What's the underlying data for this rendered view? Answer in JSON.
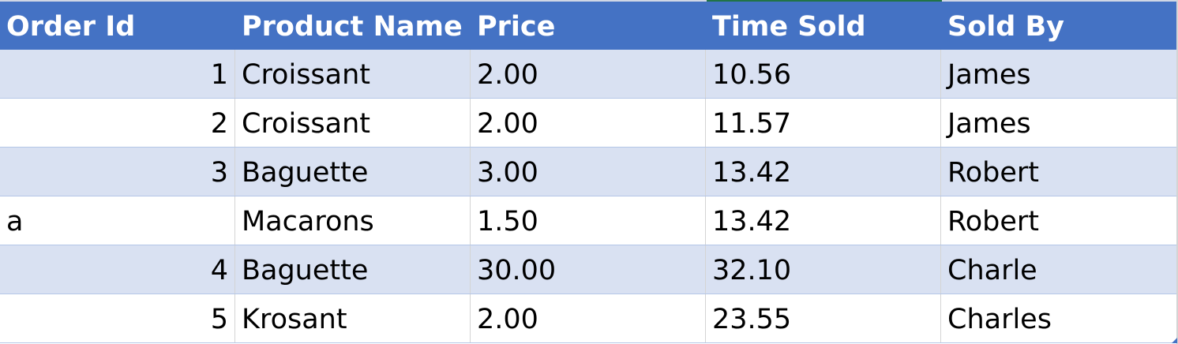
{
  "table": {
    "headers": [
      "Order Id",
      "Product Name",
      "Price",
      "Time Sold",
      "Sold By"
    ],
    "rows": [
      [
        "1",
        "Croissant",
        "2.00",
        "10.56",
        "James"
      ],
      [
        "2",
        "Croissant",
        "2.00",
        "11.57",
        "James"
      ],
      [
        "3",
        "Baguette",
        "3.00",
        "13.42",
        "Robert"
      ],
      [
        "a",
        "Macarons",
        "1.50",
        "13.42",
        "Robert"
      ],
      [
        "4",
        "Baguette",
        "30.00",
        "32.10",
        "Charle"
      ],
      [
        "5",
        "Krosant",
        "2.00",
        "23.55",
        "Charles"
      ]
    ]
  },
  "colors": {
    "header_bg": "#4472c4",
    "header_text": "#ffffff",
    "band_bg": "#d9e1f2",
    "plain_bg": "#ffffff"
  }
}
